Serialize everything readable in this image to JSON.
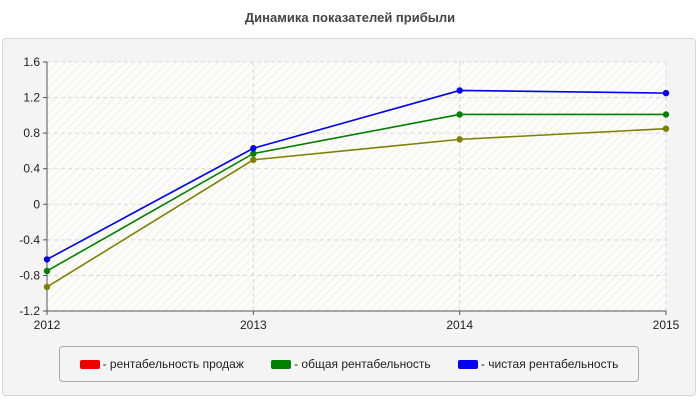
{
  "chart_data": {
    "type": "line",
    "title": "Динамика показателей прибыли",
    "x": [
      "2012",
      "2013",
      "2014",
      "2015"
    ],
    "ylim": [
      -1.2,
      1.6
    ],
    "yticks": [
      1.6,
      1.2,
      0.8,
      0.4,
      0,
      -0.4,
      -0.8,
      -1.2
    ],
    "grid": true,
    "legend_position": "bottom",
    "series": [
      {
        "name": "- рентабельность продаж",
        "color": "#ee0000",
        "values": [
          -0.93,
          0.5,
          0.73,
          0.85
        ]
      },
      {
        "name": "- общая рентабельность",
        "color": "#008000",
        "values": [
          -0.75,
          0.57,
          1.01,
          1.01
        ]
      },
      {
        "name": "- чистая рентабельность",
        "color": "#0000ee",
        "values": [
          -0.62,
          0.63,
          1.28,
          1.25
        ]
      }
    ]
  },
  "render_colors": [
    "#808000",
    "#008000",
    "#0000ee"
  ]
}
